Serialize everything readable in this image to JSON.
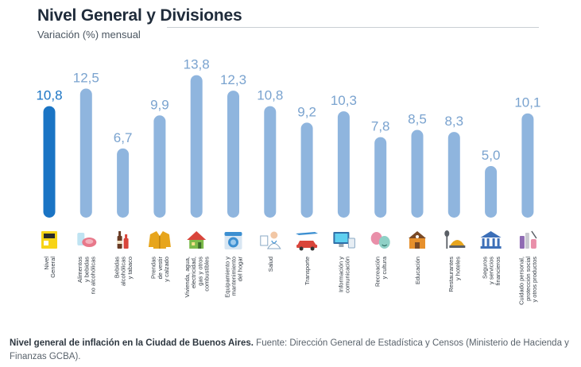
{
  "title": "Nivel General y Divisiones",
  "subtitle": "Variación (%) mensual",
  "caption": {
    "bold": "Nivel general de inflación en la Ciudad de Buenos Aires.",
    "text": "Fuente: Dirección General de Estadística y Censos (Ministerio de Hacienda y Finanzas GCBA)."
  },
  "colors": {
    "highlight": "#1a74c4",
    "bar": "#8fb5de",
    "label_highlight": "#1a74c4",
    "label": "#7aa3cf"
  },
  "chart_data": {
    "type": "bar",
    "title": "Nivel General y Divisiones",
    "subtitle": "Variación (%) mensual",
    "categories": [
      [
        "Nivel",
        "General"
      ],
      [
        "Alimentos",
        "y bebidas",
        "no alcohólicas"
      ],
      [
        "Bebidas",
        "alcohólicas",
        "y tabaco"
      ],
      [
        "Prendas",
        "de vestir",
        "y calzado"
      ],
      [
        "Vivienda, agua,",
        "electricidad,",
        "gas y otros",
        "combustibles"
      ],
      [
        "Equipamiento y",
        "mantenimiento",
        "del hogar"
      ],
      [
        "Salud"
      ],
      [
        "Transporte"
      ],
      [
        "Información y",
        "comunicación"
      ],
      [
        "Recreación",
        "y cultura"
      ],
      [
        "Educación"
      ],
      [
        "Restaurantes",
        "y hoteles"
      ],
      [
        "Seguros",
        "y servicios",
        "financieros"
      ],
      [
        "Cuidado personal,",
        "protección social",
        "y otros productos"
      ]
    ],
    "values": [
      10.8,
      12.5,
      6.7,
      9.9,
      13.8,
      12.3,
      10.8,
      9.2,
      10.3,
      7.8,
      8.5,
      8.3,
      5.0,
      10.1
    ],
    "value_labels": [
      "10,8",
      "12,5",
      "6,7",
      "9,9",
      "13,8",
      "12,3",
      "10,8",
      "9,2",
      "10,3",
      "7,8",
      "8,5",
      "8,3",
      "5,0",
      "10,1"
    ],
    "highlight_index": 0,
    "icons": [
      "ipc-logo-icon",
      "food-icon",
      "bottles-icon",
      "jacket-icon",
      "house-icon",
      "washing-machine-icon",
      "doctor-icon",
      "car-plane-icon",
      "computer-icon",
      "theater-masks-icon",
      "school-icon",
      "cutlery-icon",
      "bank-icon",
      "toiletries-icon"
    ],
    "ylim": [
      0,
      14
    ],
    "grid": false,
    "legend": "none"
  }
}
